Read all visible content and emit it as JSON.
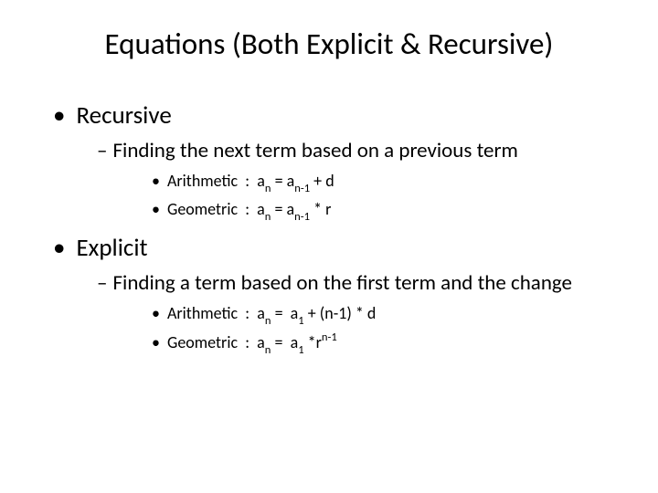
{
  "title": "Equations (Both Explicit & Recursive)",
  "section1": {
    "heading": "Recursive",
    "sub": "Finding the next term based on a previous term",
    "item1_label": "Arithmetic",
    "item2_label": "Geometric"
  },
  "section2": {
    "heading": "Explicit",
    "sub": "Finding a term based on the first term and the change",
    "item1_label": "Arithmetic",
    "item2_label": "Geometric"
  },
  "colors": {
    "text": "#000000",
    "background": "#ffffff"
  },
  "typography": {
    "title_fontsize": 33,
    "level1_fontsize": 27,
    "level2_fontsize": 23,
    "level3_fontsize": 18,
    "font_family": "Calibri"
  },
  "formulas": {
    "recursive_arithmetic": "a_n = a_{n-1} + d",
    "recursive_geometric": "a_n = a_{n-1} * r",
    "explicit_arithmetic": "a_n = a_1 + (n-1) * d",
    "explicit_geometric": "a_n = a_1 * r^{n-1}"
  }
}
